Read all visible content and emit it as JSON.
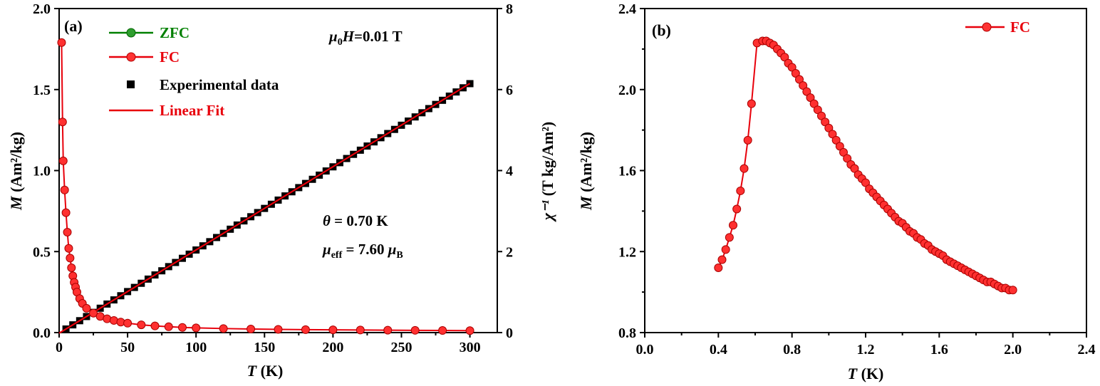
{
  "chart_data": [
    {
      "panel": "(a)",
      "type": "scatter",
      "xlabel_var": "T",
      "xlabel_unit": " (K)",
      "ylabel_var": "M",
      "ylabel_unit": " (Am²/kg)",
      "y2label_var": "χ⁻¹",
      "y2label_unit": " (T kg/Am²)",
      "xlim": [
        0,
        320
      ],
      "ylim": [
        0,
        2.0
      ],
      "y2lim": [
        0,
        8
      ],
      "xticks": [
        "0",
        "50",
        "100",
        "150",
        "200",
        "250",
        "300"
      ],
      "yticks": [
        "0.0",
        "0.5",
        "1.0",
        "1.5",
        "2.0"
      ],
      "y2ticks": [
        "0",
        "2",
        "4",
        "6",
        "8"
      ],
      "field_label": "μ0H=0.01 T",
      "theta_label": "θ =  0.70 K",
      "mueff_label": "μeff =  7.60 μB",
      "legend": {
        "placement": "top-left",
        "entries": [
          {
            "label": "ZFC",
            "color": "#008000"
          },
          {
            "label": "FC",
            "color": "#e8000b"
          },
          {
            "label": "Experimental data",
            "color": "#000000"
          },
          {
            "label": "Linear Fit",
            "color": "#e8000b"
          }
        ]
      },
      "series": [
        {
          "name": "FC",
          "color": "#e8000b",
          "x": [
            1.8,
            2.5,
            3,
            4,
            5,
            6,
            7,
            8,
            9,
            10,
            11,
            12,
            13,
            15,
            17,
            20,
            25,
            30,
            35,
            40,
            45,
            50,
            60,
            70,
            80,
            90,
            100,
            120,
            140,
            160,
            180,
            200,
            220,
            240,
            260,
            280,
            300
          ],
          "y": [
            1.79,
            1.3,
            1.06,
            0.88,
            0.74,
            0.62,
            0.52,
            0.46,
            0.4,
            0.35,
            0.31,
            0.28,
            0.25,
            0.21,
            0.18,
            0.15,
            0.12,
            0.1,
            0.085,
            0.075,
            0.065,
            0.058,
            0.048,
            0.041,
            0.036,
            0.032,
            0.029,
            0.025,
            0.022,
            0.02,
            0.018,
            0.017,
            0.016,
            0.015,
            0.014,
            0.013,
            0.012
          ]
        },
        {
          "name": "Experimental data",
          "color": "#000000",
          "axis": "right",
          "x_start": 5,
          "x_end": 300,
          "x_step": 5,
          "y_formula": "(T - 0.70) / 48.7"
        },
        {
          "name": "Linear Fit",
          "color": "#e8000b",
          "axis": "right",
          "x": [
            0,
            300
          ],
          "y": [
            -0.014,
            6.15
          ]
        }
      ]
    },
    {
      "panel": "(b)",
      "type": "line",
      "xlabel_var": "T",
      "xlabel_unit": " (K)",
      "ylabel_var": "M",
      "ylabel_unit": " (Am²/kg)",
      "xlim": [
        0.0,
        2.4
      ],
      "ylim": [
        0.8,
        2.4
      ],
      "xticks": [
        "0.0",
        "0.4",
        "0.8",
        "1.2",
        "1.6",
        "2.0",
        "2.4"
      ],
      "yticks": [
        "0.8",
        "1.2",
        "1.6",
        "2.0",
        "2.4"
      ],
      "legend": {
        "placement": "top-right",
        "entries": [
          {
            "label": "FC",
            "color": "#e8000b"
          }
        ]
      },
      "series": [
        {
          "name": "FC",
          "color": "#e8000b",
          "x": [
            0.4,
            0.42,
            0.44,
            0.46,
            0.48,
            0.5,
            0.52,
            0.54,
            0.56,
            0.58,
            0.61,
            0.64,
            0.66,
            0.68,
            0.7,
            0.72,
            0.74,
            0.76,
            0.78,
            0.8,
            0.82,
            0.84,
            0.86,
            0.88,
            0.9,
            0.92,
            0.94,
            0.96,
            0.98,
            1.0,
            1.02,
            1.04,
            1.06,
            1.08,
            1.1,
            1.12,
            1.14,
            1.16,
            1.18,
            1.2,
            1.22,
            1.24,
            1.26,
            1.28,
            1.3,
            1.32,
            1.34,
            1.36,
            1.38,
            1.4,
            1.42,
            1.44,
            1.46,
            1.48,
            1.5,
            1.52,
            1.54,
            1.56,
            1.58,
            1.6,
            1.62,
            1.64,
            1.66,
            1.68,
            1.7,
            1.72,
            1.74,
            1.76,
            1.78,
            1.8,
            1.82,
            1.84,
            1.86,
            1.88,
            1.9,
            1.92,
            1.94,
            1.96,
            1.98,
            2.0
          ],
          "y": [
            1.12,
            1.16,
            1.21,
            1.27,
            1.33,
            1.41,
            1.5,
            1.61,
            1.75,
            1.93,
            2.23,
            2.24,
            2.24,
            2.23,
            2.22,
            2.2,
            2.18,
            2.16,
            2.13,
            2.11,
            2.08,
            2.05,
            2.02,
            1.99,
            1.96,
            1.93,
            1.9,
            1.87,
            1.84,
            1.81,
            1.78,
            1.75,
            1.72,
            1.69,
            1.66,
            1.63,
            1.61,
            1.58,
            1.56,
            1.54,
            1.51,
            1.49,
            1.47,
            1.45,
            1.43,
            1.41,
            1.39,
            1.37,
            1.35,
            1.34,
            1.32,
            1.3,
            1.29,
            1.27,
            1.26,
            1.24,
            1.23,
            1.21,
            1.2,
            1.19,
            1.18,
            1.16,
            1.15,
            1.14,
            1.13,
            1.12,
            1.11,
            1.1,
            1.09,
            1.08,
            1.07,
            1.06,
            1.05,
            1.05,
            1.04,
            1.03,
            1.02,
            1.02,
            1.01,
            1.01
          ]
        }
      ]
    }
  ]
}
